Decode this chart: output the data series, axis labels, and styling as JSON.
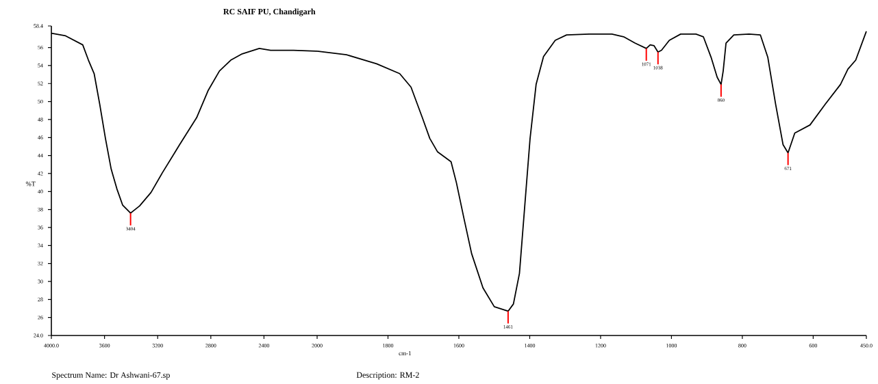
{
  "chart_data": [
    {
      "type": "line",
      "title": "RC SAIF PU, Chandigarh",
      "ylabel": "%T",
      "xlim": [
        4000,
        2000
      ],
      "ylim": [
        24,
        58.4
      ],
      "xticks": [
        {
          "value": 4000,
          "label": "4000.0"
        },
        3600,
        3200,
        2800,
        2400,
        2000
      ],
      "yticks": [
        {
          "value": 24,
          "label": "24.0"
        },
        26,
        28,
        30,
        32,
        34,
        36,
        38,
        40,
        42,
        44,
        46,
        48,
        50,
        52,
        54,
        56,
        58.4
      ],
      "series": [
        {
          "color": "#000000",
          "x": [
            4000,
            3893,
            3764,
            3721,
            3678,
            3636,
            3593,
            3550,
            3507,
            3464,
            3404,
            3336,
            3250,
            3164,
            3035,
            2907,
            2821,
            2735,
            2650,
            2564,
            2435,
            2350,
            2178,
            2007,
            2000
          ],
          "values": [
            57.6,
            57.3,
            56.3,
            54.6,
            53.1,
            49.7,
            45.9,
            42.5,
            40.3,
            38.5,
            37.6,
            38.4,
            39.9,
            42.1,
            45.2,
            48.2,
            51.2,
            53.4,
            54.6,
            55.3,
            55.9,
            55.7,
            55.7,
            55.6,
            55.6
          ]
        }
      ],
      "annotations": [
        {
          "text": "3404",
          "x": 3404,
          "y": 37.6
        },
        "Spectrum Name: Dr Ashwani-67.sp",
        "Description: RM-2"
      ]
    },
    {
      "type": "line",
      "xlabel": "cm-1",
      "xlim": [
        2000,
        450
      ],
      "ylim": [
        24,
        58.4
      ],
      "tick_labels": "x",
      "xticks": [
        1800,
        1600,
        1400,
        1200,
        1000,
        800,
        600,
        {
          "value": 450,
          "label": "450.0"
        }
      ],
      "series": [
        {
          "color": "#000000",
          "x": [
            2000,
            1917,
            1832,
            1767,
            1735,
            1703,
            1682,
            1660,
            1639,
            1622,
            1607,
            1585,
            1564,
            1532,
            1500,
            1461,
            1446,
            1429,
            1414,
            1399,
            1382,
            1361,
            1328,
            1296,
            1232,
            1168,
            1135,
            1103,
            1071,
            1060,
            1049,
            1038,
            1028,
            1006,
            974,
            931,
            910,
            888,
            871,
            860,
            854,
            846,
            824,
            781,
            749,
            728,
            706,
            685,
            671,
            652,
            609,
            566,
            523,
            502,
            480,
            450
          ],
          "values": [
            55.6,
            55.2,
            54.2,
            53.1,
            51.6,
            48.2,
            45.9,
            44.4,
            43.8,
            43.3,
            41.0,
            36.9,
            33.1,
            29.3,
            27.2,
            26.7,
            27.5,
            30.9,
            38.4,
            45.9,
            51.9,
            55.0,
            56.8,
            57.4,
            57.5,
            57.5,
            57.2,
            56.5,
            55.9,
            56.3,
            56.2,
            55.5,
            55.7,
            56.8,
            57.5,
            57.5,
            57.2,
            54.9,
            52.7,
            51.9,
            53.4,
            56.5,
            57.4,
            57.5,
            57.4,
            54.9,
            49.7,
            45.2,
            44.3,
            46.5,
            47.4,
            49.7,
            51.9,
            53.6,
            54.6,
            57.8
          ]
        }
      ],
      "annotations": [
        {
          "text": "1461",
          "x": 1461,
          "y": 26.7
        },
        {
          "text": "1071",
          "x": 1071,
          "y": 55.9
        },
        {
          "text": "1038",
          "x": 1038,
          "y": 55.5
        },
        {
          "text": "860",
          "x": 860,
          "y": 51.9
        },
        {
          "text": "671",
          "x": 671,
          "y": 44.3
        }
      ]
    }
  ]
}
